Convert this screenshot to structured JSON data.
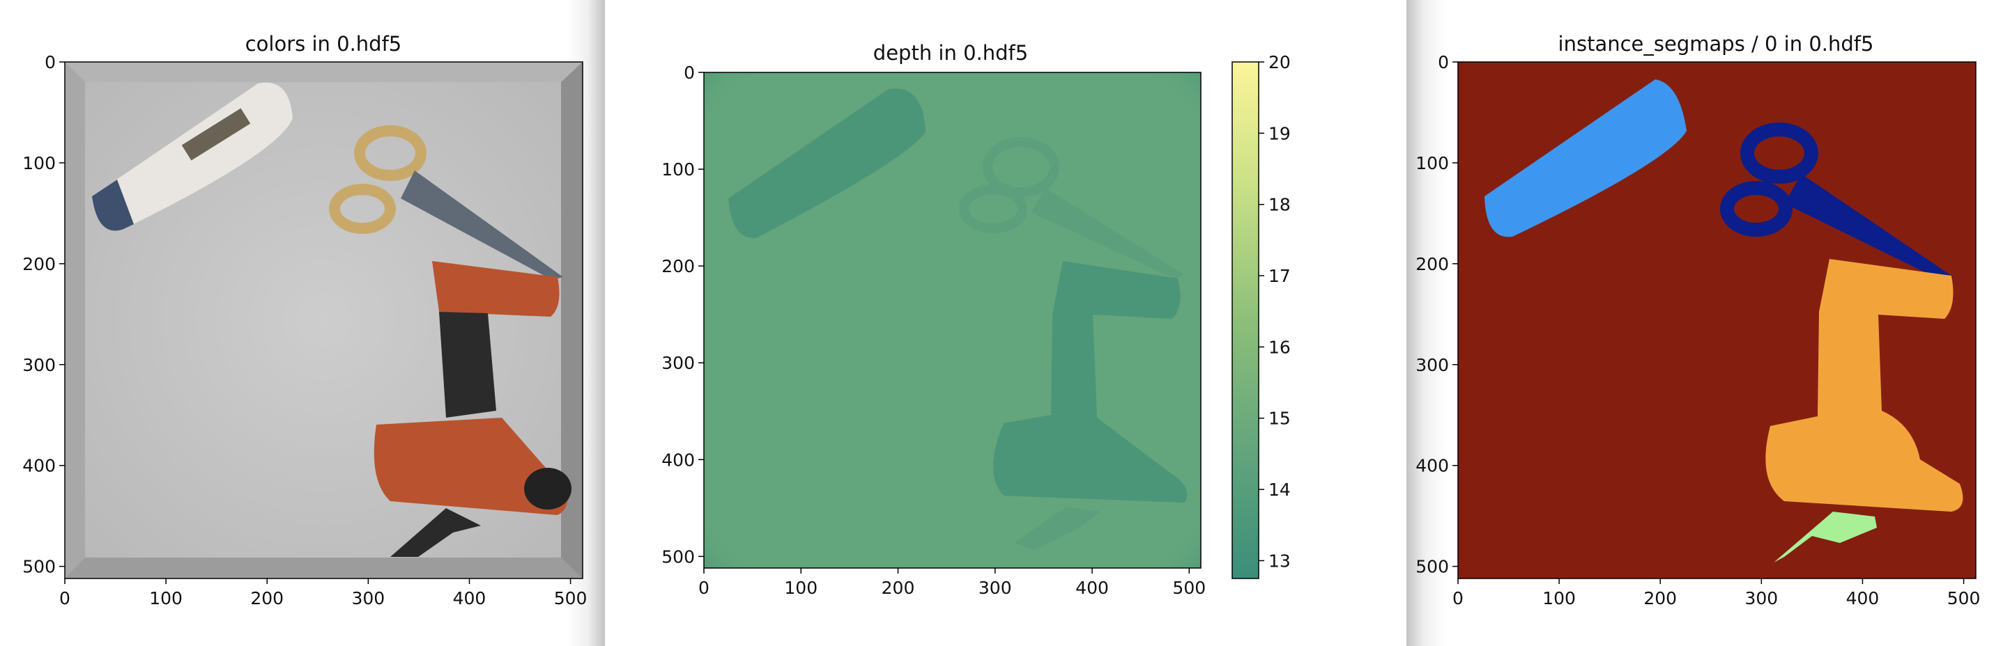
{
  "chart_data": [
    {
      "type": "image",
      "title": "colors in 0.hdf5",
      "xlim": [
        0,
        512
      ],
      "ylim": [
        512,
        0
      ],
      "xticks": [
        0,
        100,
        200,
        300,
        400,
        500
      ],
      "yticks": [
        0,
        100,
        200,
        300,
        400,
        500
      ],
      "colors": {
        "floor": "#c9c9c9",
        "wall": "#9a9a9a",
        "drill_body": "#b9532f",
        "drill_grip": "#2b2b2b",
        "scissor_handle": "#c9a96a",
        "scissor_blade": "#5f6a76",
        "bottle": "#e9e6e1",
        "bottle_cap": "#3f4f6e"
      }
    },
    {
      "type": "heatmap",
      "title": "depth in 0.hdf5",
      "xlim": [
        0,
        512
      ],
      "ylim": [
        512,
        0
      ],
      "xticks": [
        0,
        100,
        200,
        300,
        400,
        500
      ],
      "yticks": [
        0,
        100,
        200,
        300,
        400,
        500
      ],
      "colorbar": {
        "min": 12.75,
        "max": 20,
        "ticks": [
          13,
          14,
          15,
          16,
          17,
          18,
          19,
          20
        ]
      },
      "colors": {
        "background": "#63a57c",
        "objects": "#4b9678",
        "edge": "#5a9d7e",
        "cmap": [
          "#3b8e7a",
          "#63a57c",
          "#8dbf7a",
          "#c8df86",
          "#fbf59a"
        ]
      }
    },
    {
      "type": "image",
      "title": "instance_segmaps / 0 in 0.hdf5",
      "xlim": [
        0,
        512
      ],
      "ylim": [
        512,
        0
      ],
      "xticks": [
        0,
        100,
        200,
        300,
        400,
        500
      ],
      "yticks": [
        0,
        100,
        200,
        300,
        400,
        500
      ],
      "colors": {
        "background": "#841f10",
        "bottle": "#3d97f0",
        "scissors": "#0b1e8b",
        "drill": "#f2a43b",
        "clamp": "#a7f096"
      }
    }
  ]
}
